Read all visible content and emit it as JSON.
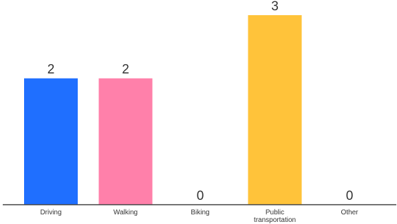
{
  "chart_data": {
    "type": "bar",
    "title": "",
    "xlabel": "",
    "ylabel": "",
    "categories": [
      {
        "lines": [
          "Driving"
        ]
      },
      {
        "lines": [
          "Walking"
        ]
      },
      {
        "lines": [
          "Biking"
        ]
      },
      {
        "lines": [
          "Public",
          "transportation"
        ]
      },
      {
        "lines": [
          "Other"
        ]
      }
    ],
    "values": [
      2,
      2,
      0,
      3,
      0
    ],
    "colors": [
      "#1f6fff",
      "#ff80aa",
      "#cfcfcf",
      "#ffc33a",
      "#cfcfcf"
    ],
    "ylim": [
      0,
      3
    ],
    "grid": false,
    "legend": "none"
  }
}
